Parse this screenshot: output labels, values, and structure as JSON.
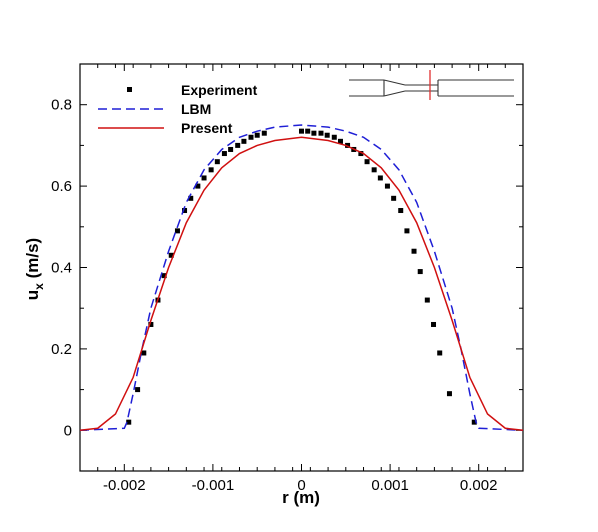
{
  "chart_data": {
    "type": "line",
    "title": "",
    "xlabel": "r (m)",
    "ylabel_main": "u",
    "ylabel_sub": "x",
    "ylabel_unit": " (m/s)",
    "xlim": [
      -0.0025,
      0.0025
    ],
    "ylim": [
      -0.1,
      0.9
    ],
    "x_ticks": [
      -0.002,
      -0.001,
      0,
      0.001,
      0.002
    ],
    "x_tick_labels": [
      "-0.002",
      "-0.001",
      "0",
      "0.001",
      "0.002"
    ],
    "y_ticks": [
      0,
      0.2,
      0.4,
      0.6,
      0.8
    ],
    "y_tick_labels": [
      "0",
      "0.2",
      "0.4",
      "0.6",
      "0.8"
    ],
    "grid": false,
    "legend_position": "top-left",
    "series": [
      {
        "name": "Experiment",
        "style": "markers",
        "marker": "square",
        "color": "#000000",
        "points": [
          [
            -0.00195,
            0.02
          ],
          [
            -0.00185,
            0.1
          ],
          [
            -0.00178,
            0.19
          ],
          [
            -0.0017,
            0.26
          ],
          [
            -0.00162,
            0.32
          ],
          [
            -0.00155,
            0.38
          ],
          [
            -0.00147,
            0.43
          ],
          [
            -0.0014,
            0.49
          ],
          [
            -0.00132,
            0.54
          ],
          [
            -0.00125,
            0.57
          ],
          [
            -0.00117,
            0.6
          ],
          [
            -0.0011,
            0.62
          ],
          [
            -0.00102,
            0.64
          ],
          [
            -0.00095,
            0.66
          ],
          [
            -0.00087,
            0.68
          ],
          [
            -0.0008,
            0.69
          ],
          [
            -0.00072,
            0.7
          ],
          [
            -0.00065,
            0.71
          ],
          [
            -0.00057,
            0.72
          ],
          [
            -0.0005,
            0.725
          ],
          [
            -0.00042,
            0.73
          ],
          [
            0.0,
            0.735
          ],
          [
            7e-05,
            0.735
          ],
          [
            0.00014,
            0.73
          ],
          [
            0.00022,
            0.73
          ],
          [
            0.00029,
            0.725
          ],
          [
            0.00037,
            0.72
          ],
          [
            0.00044,
            0.71
          ],
          [
            0.00052,
            0.7
          ],
          [
            0.00059,
            0.69
          ],
          [
            0.00067,
            0.68
          ],
          [
            0.00074,
            0.66
          ],
          [
            0.00082,
            0.64
          ],
          [
            0.00089,
            0.62
          ],
          [
            0.00097,
            0.6
          ],
          [
            0.00104,
            0.57
          ],
          [
            0.00112,
            0.54
          ],
          [
            0.00119,
            0.49
          ],
          [
            0.00127,
            0.44
          ],
          [
            0.00134,
            0.39
          ],
          [
            0.00142,
            0.32
          ],
          [
            0.00149,
            0.26
          ],
          [
            0.00156,
            0.19
          ],
          [
            0.00167,
            0.09
          ],
          [
            0.00195,
            0.02
          ]
        ]
      },
      {
        "name": "LBM",
        "style": "dashed",
        "color": "#1f1fd6",
        "points": [
          [
            -0.0025,
            0.0
          ],
          [
            -0.002,
            0.005
          ],
          [
            -0.00197,
            0.02
          ],
          [
            -0.0019,
            0.09
          ],
          [
            -0.0018,
            0.2
          ],
          [
            -0.0017,
            0.3
          ],
          [
            -0.0015,
            0.44
          ],
          [
            -0.0013,
            0.56
          ],
          [
            -0.0011,
            0.64
          ],
          [
            -0.0009,
            0.69
          ],
          [
            -0.0007,
            0.72
          ],
          [
            -0.0005,
            0.735
          ],
          [
            -0.0003,
            0.745
          ],
          [
            0.0,
            0.75
          ],
          [
            0.0003,
            0.745
          ],
          [
            0.0005,
            0.735
          ],
          [
            0.0007,
            0.72
          ],
          [
            0.0009,
            0.69
          ],
          [
            0.0011,
            0.64
          ],
          [
            0.0013,
            0.56
          ],
          [
            0.0015,
            0.44
          ],
          [
            0.0017,
            0.3
          ],
          [
            0.0018,
            0.2
          ],
          [
            0.0019,
            0.09
          ],
          [
            0.00197,
            0.02
          ],
          [
            0.002,
            0.005
          ],
          [
            0.0025,
            0.0
          ]
        ]
      },
      {
        "name": "Present",
        "style": "solid",
        "color": "#d01010",
        "points": [
          [
            -0.0025,
            0.0
          ],
          [
            -0.0023,
            0.005
          ],
          [
            -0.0021,
            0.04
          ],
          [
            -0.0019,
            0.13
          ],
          [
            -0.0017,
            0.27
          ],
          [
            -0.0015,
            0.4
          ],
          [
            -0.0013,
            0.51
          ],
          [
            -0.0011,
            0.59
          ],
          [
            -0.0009,
            0.645
          ],
          [
            -0.0007,
            0.68
          ],
          [
            -0.0005,
            0.7
          ],
          [
            -0.0003,
            0.712
          ],
          [
            0.0,
            0.72
          ],
          [
            0.0003,
            0.712
          ],
          [
            0.0005,
            0.7
          ],
          [
            0.0007,
            0.68
          ],
          [
            0.0009,
            0.645
          ],
          [
            0.0011,
            0.59
          ],
          [
            0.0013,
            0.51
          ],
          [
            0.0015,
            0.4
          ],
          [
            0.0017,
            0.27
          ],
          [
            0.0019,
            0.13
          ],
          [
            0.0021,
            0.04
          ],
          [
            0.0023,
            0.005
          ],
          [
            0.0025,
            0.0
          ]
        ]
      }
    ]
  },
  "inset": {
    "name": "channel-geometry-inset",
    "outline_color": "#333333",
    "marker_color": "#e03030"
  }
}
